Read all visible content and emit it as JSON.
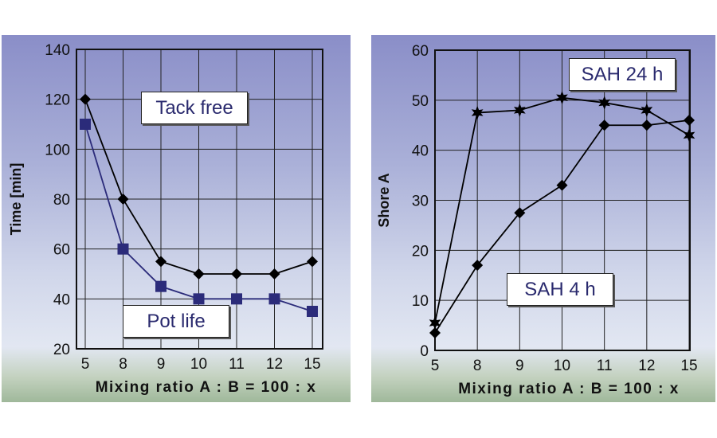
{
  "chart_data": [
    {
      "type": "line",
      "categories": [
        "5",
        "8",
        "9",
        "10",
        "11",
        "12",
        "15"
      ],
      "xlabel": "Mixing ratio A : B = 100 : x",
      "ylabel": "Time [min]",
      "ylim": [
        20,
        140
      ],
      "yticks": [
        20,
        40,
        60,
        80,
        100,
        120,
        140
      ],
      "grid": true,
      "series": [
        {
          "name": "Tack free",
          "values": [
            120,
            80,
            55,
            50,
            50,
            50,
            55
          ],
          "color": "#000000",
          "marker": "diamond"
        },
        {
          "name": "Pot life",
          "values": [
            110,
            60,
            45,
            40,
            40,
            40,
            35
          ],
          "color": "#2b2b7a",
          "marker": "square"
        }
      ]
    },
    {
      "type": "line",
      "categories": [
        "5",
        "8",
        "9",
        "10",
        "11",
        "12",
        "15"
      ],
      "xlabel": "Mixing ratio A : B = 100 : x",
      "ylabel": "Shore A",
      "ylim": [
        0,
        60
      ],
      "yticks": [
        0,
        10,
        20,
        30,
        40,
        50,
        60
      ],
      "grid": true,
      "series": [
        {
          "name": "SAH 24 h",
          "values": [
            5.5,
            47.5,
            48,
            50.5,
            49.5,
            48,
            43
          ],
          "color": "#000000",
          "marker": "star"
        },
        {
          "name": "SAH 4 h",
          "values": [
            3.5,
            17,
            27.5,
            33,
            45,
            45,
            46
          ],
          "color": "#000000",
          "marker": "diamond"
        }
      ]
    }
  ]
}
